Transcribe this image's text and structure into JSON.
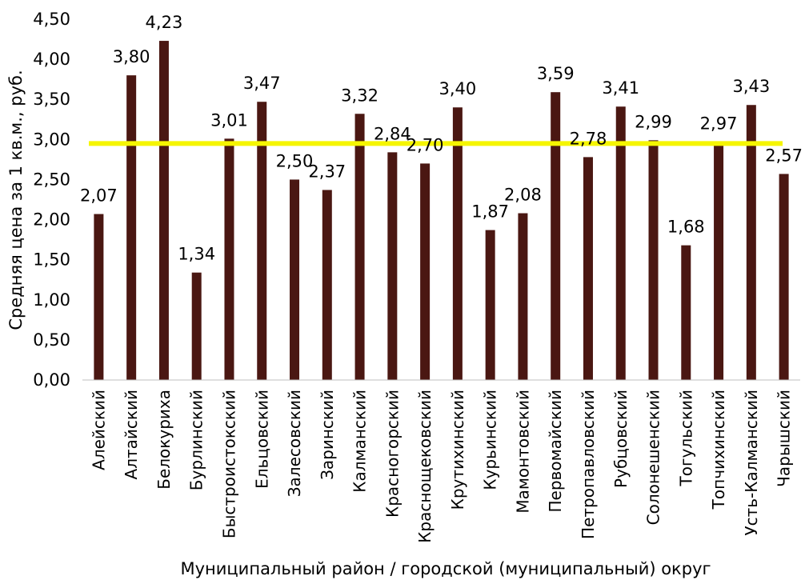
{
  "chart_data": {
    "type": "bar",
    "xlabel": "Муниципальный район / городской (муниципальный) округ",
    "ylabel": "Средняя цена за 1 кв.м., руб.",
    "ylim": [
      0,
      4.5
    ],
    "ytick_step": 0.5,
    "grid": false,
    "legend": "none",
    "bar_color": "#4a1712",
    "reference_line": {
      "value": 2.95,
      "color": "#f5f500"
    },
    "categories": [
      "Алейский",
      "Алтайский",
      "Белокуриха",
      "Бурлинский",
      "Быстроистокский",
      "Ельцовский",
      "Залесовский",
      "Заринский",
      "Калманский",
      "Красногорский",
      "Краснощековский",
      "Крутихинский",
      "Курьинский",
      "Мамонтовский",
      "Первомайский",
      "Петропавловский",
      "Рубцовский",
      "Солонешенский",
      "Тогульский",
      "Топчихинский",
      "Усть-Калманский",
      "Чарышский"
    ],
    "values": [
      2.07,
      3.8,
      4.23,
      1.34,
      3.01,
      3.47,
      2.5,
      2.37,
      3.32,
      2.84,
      2.7,
      3.4,
      1.87,
      2.08,
      3.59,
      2.78,
      3.41,
      2.99,
      1.68,
      2.97,
      3.43,
      2.57
    ],
    "data_labels": [
      "2,07",
      "3,80",
      "4,23",
      "1,34",
      "3,01",
      "3,47",
      "2,50",
      "2,37",
      "3,32",
      "2,84",
      "2,70",
      "3,40",
      "1,87",
      "2,08",
      "3,59",
      "2,78",
      "3,41",
      "2,99",
      "1,68",
      "2,97",
      "3,43",
      "2,57"
    ],
    "ytick_labels": [
      "0,00",
      "0,50",
      "1,00",
      "1,50",
      "2,00",
      "2,50",
      "3,00",
      "3,50",
      "4,00",
      "4,50"
    ]
  }
}
